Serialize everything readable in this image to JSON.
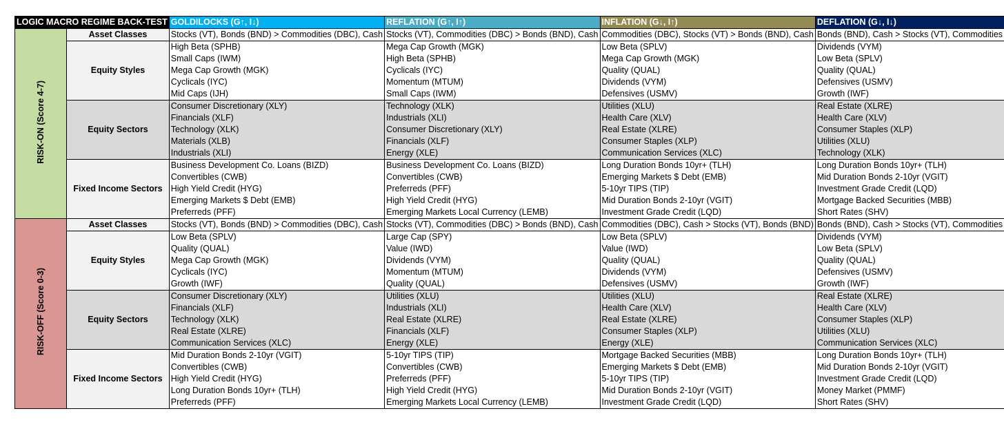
{
  "title": "LOGIC MACRO REGIME BACK-TEST",
  "regimes": [
    {
      "label": "GOLDILOCKS (G↑, I↓)",
      "color": "#00b0f0"
    },
    {
      "label": "REFLATION (G↑, I↑)",
      "color": "#4bacc6"
    },
    {
      "label": "INFLATION (G↓, I↑)",
      "color": "#948a54"
    },
    {
      "label": "DEFLATION (G↓, I↓)",
      "color": "#002060"
    }
  ],
  "sections": [
    {
      "risk_label": "RISK-ON (Score 4-7)",
      "risk_color": "#c4dba2",
      "categories": [
        {
          "name": "Asset Classes",
          "shaded": false,
          "cells": [
            [
              "Stocks (VT), Bonds (BND) > Commodities (DBC), Cash"
            ],
            [
              "Stocks (VT), Commodities (DBC) > Bonds (BND), Cash"
            ],
            [
              "Commodities (DBC), Stocks (VT) > Bonds (BND), Cash"
            ],
            [
              "Bonds (BND), Cash > Stocks (VT), Commodities (DBC)"
            ]
          ]
        },
        {
          "name": "Equity Styles",
          "shaded": false,
          "cells": [
            [
              "High Beta (SPHB)",
              "Small Caps (IWM)",
              "Mega Cap Growth (MGK)",
              "Cyclicals (IYC)",
              "Mid Caps (IJH)"
            ],
            [
              "Mega Cap Growth (MGK)",
              "High Beta (SPHB)",
              "Cyclicals (IYC)",
              "Momentum (MTUM)",
              "Small Caps (IWM)"
            ],
            [
              "Low Beta (SPLV)",
              "Mega Cap Growth (MGK)",
              "Quality (QUAL)",
              "Dividends (VYM)",
              "Defensives (USMV)"
            ],
            [
              "Dividends (VYM)",
              "Low Beta (SPLV)",
              "Quality (QUAL)",
              "Defensives (USMV)",
              "Growth (IWF)"
            ]
          ]
        },
        {
          "name": "Equity Sectors",
          "shaded": true,
          "cells": [
            [
              "Consumer Discretionary (XLY)",
              "Financials (XLF)",
              "Technology (XLK)",
              "Materials (XLB)",
              "Industrials (XLI)"
            ],
            [
              "Technology (XLK)",
              "Industrials (XLI)",
              "Consumer Discretionary (XLY)",
              "Financials (XLF)",
              "Energy (XLE)"
            ],
            [
              "Utilities (XLU)",
              "Health Care (XLV)",
              "Real Estate (XLRE)",
              "Consumer Staples (XLP)",
              "Communication Services (XLC)"
            ],
            [
              "Real Estate (XLRE)",
              "Health Care (XLV)",
              "Consumer Staples (XLP)",
              "Utilities (XLU)",
              "Technology (XLK)"
            ]
          ]
        },
        {
          "name": "Fixed Income Sectors",
          "shaded": false,
          "cells": [
            [
              "Business Development Co. Loans (BIZD)",
              "Convertibles (CWB)",
              "High Yield Credit (HYG)",
              "Emerging Markets $ Debt (EMB)",
              "Preferreds (PFF)"
            ],
            [
              "Business Development Co. Loans (BIZD)",
              "Convertibles (CWB)",
              "Preferreds (PFF)",
              "High Yield Credit (HYG)",
              "Emerging Markets Local Currency (LEMB)"
            ],
            [
              "Long Duration Bonds 10yr+ (TLH)",
              "Emerging Markets $ Debt (EMB)",
              "5-10yr TIPS (TIP)",
              "Mid Duration Bonds 2-10yr (VGIT)",
              "Investment Grade Credit (LQD)"
            ],
            [
              "Long Duration Bonds 10yr+ (TLH)",
              "Mid Duration Bonds 2-10yr (VGIT)",
              "Investment Grade Credit (LQD)",
              "Mortgage Backed Securities (MBB)",
              "Short Rates (SHV)"
            ]
          ]
        }
      ]
    },
    {
      "risk_label": "RISK-OFF (Score 0-3)",
      "risk_color": "#d99693",
      "categories": [
        {
          "name": "Asset Classes",
          "shaded": false,
          "cells": [
            [
              "Stocks (VT), Bonds (BND) > Commodities (DBC), Cash"
            ],
            [
              "Stocks (VT), Commodities (DBC) > Bonds (BND), Cash"
            ],
            [
              "Commodities (DBC), Cash > Stocks (VT), Bonds (BND)"
            ],
            [
              "Bonds (BND), Cash > Stocks (VT), Commodities (DBC)"
            ]
          ]
        },
        {
          "name": "Equity Styles",
          "shaded": false,
          "cells": [
            [
              "Low Beta (SPLV)",
              "Quality (QUAL)",
              "Mega Cap Growth (MGK)",
              "Cyclicals (IYC)",
              "Growth (IWF)"
            ],
            [
              "Large Cap (SPY)",
              "Value (IWD)",
              "Dividends (VYM)",
              "Momentum (MTUM)",
              "Quality (QUAL)"
            ],
            [
              "Low Beta (SPLV)",
              "Value (IWD)",
              "Quality (QUAL)",
              "Dividends (VYM)",
              "Defensives (USMV)"
            ],
            [
              "Dividends (VYM)",
              "Low Beta (SPLV)",
              "Quality (QUAL)",
              "Defensives (USMV)",
              "Growth (IWF)"
            ]
          ]
        },
        {
          "name": "Equity Sectors",
          "shaded": true,
          "cells": [
            [
              "Consumer Discretionary (XLY)",
              "Financials (XLF)",
              "Technology (XLK)",
              "Real Estate (XLRE)",
              "Communication Services (XLC)"
            ],
            [
              "Utilities (XLU)",
              "Industrials (XLI)",
              "Real Estate (XLRE)",
              "Financials (XLF)",
              "Energy (XLE)"
            ],
            [
              "Utilities (XLU)",
              "Health Care (XLV)",
              "Real Estate (XLRE)",
              "Consumer Staples (XLP)",
              "Energy (XLE)"
            ],
            [
              "Real Estate (XLRE)",
              "Health Care (XLV)",
              "Consumer Staples (XLP)",
              "Utilities (XLU)",
              "Communication Services (XLC)"
            ]
          ]
        },
        {
          "name": "Fixed Income Sectors",
          "shaded": false,
          "cells": [
            [
              "Mid Duration Bonds 2-10yr (VGIT)",
              "Convertibles (CWB)",
              "High Yield Credit (HYG)",
              "Long Duration Bonds 10yr+ (TLH)",
              "Preferreds (PFF)"
            ],
            [
              "5-10yr TIPS (TIP)",
              "Convertibles (CWB)",
              "Preferreds (PFF)",
              "High Yield Credit (HYG)",
              "Emerging Markets Local Currency (LEMB)"
            ],
            [
              "Mortgage Backed Securities (MBB)",
              "Emerging Markets $ Debt (EMB)",
              "5-10yr TIPS (TIP)",
              "Mid Duration Bonds 2-10yr (VGIT)",
              "Investment Grade Credit (LQD)"
            ],
            [
              "Long Duration Bonds 10yr+ (TLH)",
              "Mid Duration Bonds 2-10yr (VGIT)",
              "Investment Grade Credit (LQD)",
              "Money Market (PMMF)",
              "Short Rates (SHV)"
            ]
          ]
        }
      ]
    }
  ]
}
